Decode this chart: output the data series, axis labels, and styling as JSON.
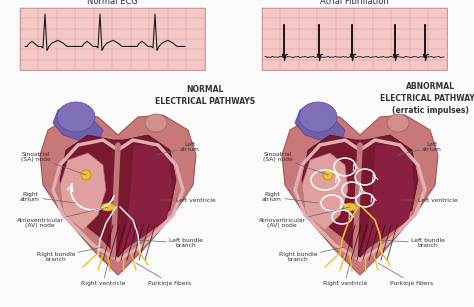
{
  "title_left": "Normal ECG",
  "title_right": "Atrial Fibrillation",
  "label_left_center": "NORMAL\nELECTRICAL PATHWAYS",
  "label_right_center": "ABNORMAL\nELECTRICAL PATHWAYS\n(erratic impulses)",
  "bg_color": "#fafafa",
  "ecg_bg": "#f5c8c8",
  "ecg_line": "#1a1a1a",
  "grid_color": "#e09090",
  "heart_skin": "#c87878",
  "heart_skin2": "#d99090",
  "heart_dark": "#7a1830",
  "heart_purple": "#7060a8",
  "heart_light_pink": "#e8aaaa",
  "heart_medium": "#b06060",
  "heart_sep": "#c07878",
  "node_color": "#f0c030",
  "purkinje_normal": "#f0c030",
  "purkinje_afib": "#f0c030",
  "white_path": "#ffffff",
  "label_color": "#333333",
  "arrow_color": "#666666"
}
